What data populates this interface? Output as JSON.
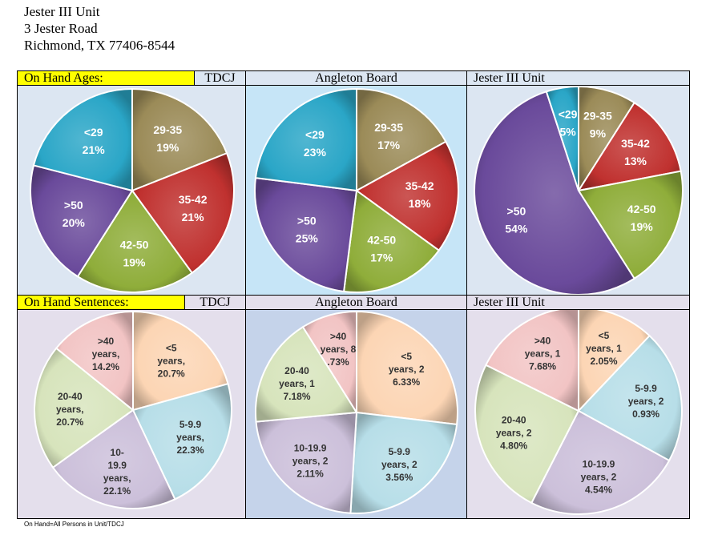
{
  "address": {
    "line1": "Jester III Unit",
    "line2": "3 Jester Road",
    "line3": "Richmond, TX 77406-8544"
  },
  "ages_header": {
    "title": "On Hand Ages:",
    "col1": "TDCJ",
    "col2": "Angleton Board",
    "col3": "Jester III Unit"
  },
  "sentences_header": {
    "title": "On Hand Sentences:",
    "col1": "TDCJ",
    "col2": "Angleton Board",
    "col3": "Jester III Unit"
  },
  "footnote": "On Hand=All Persons in Unit/TDCJ",
  "colors": {
    "cell_ages": "#dce6f2",
    "cell_ages_mid": "#c6e5f7",
    "cell_sent": "#e4dfec",
    "cell_sent_mid": "#c5d3ea",
    "yellow": "#ffff00"
  },
  "chart_data": [
    {
      "type": "pie",
      "group": "On Hand Ages",
      "panel": "TDCJ",
      "slices": [
        {
          "category": "29-35",
          "value": 19,
          "label": [
            "29-35",
            "19%"
          ],
          "color": "#9b8b58"
        },
        {
          "category": "35-42",
          "value": 21,
          "label": [
            "35-42",
            "21%"
          ],
          "color": "#c0312f"
        },
        {
          "category": "42-50",
          "value": 19,
          "label": [
            "42-50",
            "19%"
          ],
          "color": "#8fad3a"
        },
        {
          "category": ">50",
          "value": 20,
          "label": [
            ">50",
            "20%"
          ],
          "color": "#6a4a9b"
        },
        {
          "category": "<29",
          "value": 21,
          "label": [
            "<29",
            "21%"
          ],
          "color": "#2aa6c7"
        }
      ]
    },
    {
      "type": "pie",
      "group": "On Hand Ages",
      "panel": "Angleton Board",
      "slices": [
        {
          "category": "29-35",
          "value": 17,
          "label": [
            "29-35",
            "17%"
          ],
          "color": "#9b8b58"
        },
        {
          "category": "35-42",
          "value": 18,
          "label": [
            "35-42",
            "18%"
          ],
          "color": "#c0312f"
        },
        {
          "category": "42-50",
          "value": 17,
          "label": [
            "42-50",
            "17%"
          ],
          "color": "#8fad3a"
        },
        {
          "category": ">50",
          "value": 25,
          "label": [
            ">50",
            "25%"
          ],
          "color": "#6a4a9b"
        },
        {
          "category": "<29",
          "value": 23,
          "label": [
            "<29",
            "23%"
          ],
          "color": "#2aa6c7"
        }
      ]
    },
    {
      "type": "pie",
      "group": "On Hand Ages",
      "panel": "Jester III Unit",
      "slices": [
        {
          "category": "29-35",
          "value": 9,
          "label": [
            "29-35",
            "9%"
          ],
          "color": "#9b8b58"
        },
        {
          "category": "35-42",
          "value": 13,
          "label": [
            "35-42",
            "13%"
          ],
          "color": "#c0312f"
        },
        {
          "category": "42-50",
          "value": 19,
          "label": [
            "42-50",
            "19%"
          ],
          "color": "#8fad3a"
        },
        {
          "category": ">50",
          "value": 54,
          "label": [
            ">50",
            "54%"
          ],
          "color": "#6a4a9b"
        },
        {
          "category": "<29",
          "value": 5,
          "label": [
            "<29",
            "5%"
          ],
          "color": "#2aa6c7"
        }
      ]
    },
    {
      "type": "pie",
      "group": "On Hand Sentences",
      "panel": "TDCJ",
      "slices": [
        {
          "category": "<5 years",
          "value": 20.7,
          "label": [
            "<5",
            "years,",
            "20.7%"
          ],
          "color": "#fcd5b4"
        },
        {
          "category": "5-9.9 years",
          "value": 22.3,
          "label": [
            "5-9.9",
            "years,",
            "22.3%"
          ],
          "color": "#b7dee8"
        },
        {
          "category": "10-19.9 years",
          "value": 22.1,
          "label": [
            "10-",
            "19.9",
            "years,",
            "22.1%"
          ],
          "color": "#ccc0da"
        },
        {
          "category": "20-40 years",
          "value": 20.7,
          "label": [
            "20-40",
            "years,",
            "20.7%"
          ],
          "color": "#d7e4bc"
        },
        {
          "category": ">40 years",
          "value": 14.2,
          "label": [
            ">40",
            "years,",
            "14.2%"
          ],
          "color": "#f2c4c4"
        }
      ]
    },
    {
      "type": "pie",
      "group": "On Hand Sentences",
      "panel": "Angleton Board",
      "slices": [
        {
          "category": "<5 years",
          "value": 26.33,
          "label": [
            "<5",
            "years, 2",
            "6.33%"
          ],
          "color": "#fcd5b4"
        },
        {
          "category": "5-9.9 years",
          "value": 23.56,
          "label": [
            "5-9.9",
            "years, 2",
            "3.56%"
          ],
          "color": "#b7dee8"
        },
        {
          "category": "10-19.9 years",
          "value": 22.11,
          "label": [
            "10-19.9",
            "years, 2",
            "2.11%"
          ],
          "color": "#ccc0da"
        },
        {
          "category": "20-40 years",
          "value": 17.18,
          "label": [
            "20-40",
            "years, 1",
            "7.18%"
          ],
          "color": "#d7e4bc"
        },
        {
          "category": ">40 years",
          "value": 8.73,
          "label": [
            ">40",
            "years, 8",
            ".73%"
          ],
          "color": "#f2c4c4"
        }
      ]
    },
    {
      "type": "pie",
      "group": "On Hand Sentences",
      "panel": "Jester III Unit",
      "slices": [
        {
          "category": "<5 years",
          "value": 12.05,
          "label": [
            "<5",
            "years, 1",
            "2.05%"
          ],
          "color": "#fcd5b4"
        },
        {
          "category": "5-9.9 years",
          "value": 20.93,
          "label": [
            "5-9.9",
            "years, 2",
            "0.93%"
          ],
          "color": "#b7dee8"
        },
        {
          "category": "10-19.9 years",
          "value": 24.54,
          "label": [
            "10-19.9",
            "years, 2",
            "4.54%"
          ],
          "color": "#ccc0da"
        },
        {
          "category": "20-40 years",
          "value": 24.8,
          "label": [
            "20-40",
            "years, 2",
            "4.80%"
          ],
          "color": "#d7e4bc"
        },
        {
          "category": ">40 years",
          "value": 17.68,
          "label": [
            ">40",
            "years, 1",
            "7.68%"
          ],
          "color": "#f2c4c4"
        }
      ]
    }
  ]
}
